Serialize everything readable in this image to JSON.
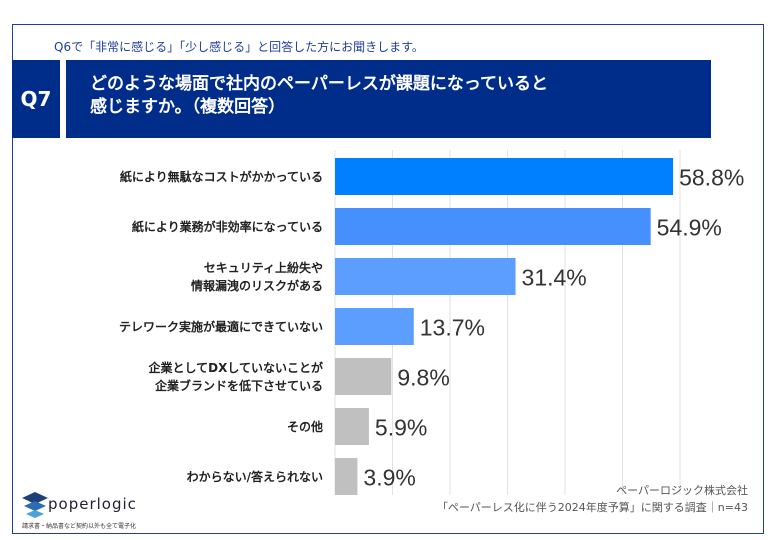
{
  "header": {
    "subtitle": "Q6で「非常に感じる」「少し感じる」と回答した方にお聞きします。",
    "q_number": "Q7",
    "question_line1": "どのような場面で社内のペーパーレスが課題になっていると",
    "question_line2": "感じますか。（複数回答）"
  },
  "chart_data": {
    "type": "bar",
    "orientation": "horizontal",
    "xlim": [
      0,
      60
    ],
    "grid": true,
    "categories": [
      "紙により無駄なコストがかかっている",
      "紙により業務が非効率になっている",
      "セキュリティ上紛失や\n情報漏洩のリスクがある",
      "テレワーク実施が最適にできていない",
      "企業としてDXしていないことが\n企業ブランドを低下させている",
      "その他",
      "わからない/答えられない"
    ],
    "values": [
      58.8,
      54.9,
      31.4,
      13.7,
      9.8,
      5.9,
      3.9
    ],
    "value_labels": [
      "58.8%",
      "54.9%",
      "31.4%",
      "13.7%",
      "9.8%",
      "5.9%",
      "3.9%"
    ],
    "colors": [
      "#0080ff",
      "#4590fd",
      "#5b9efd",
      "#5b9efd",
      "#c0c0c0",
      "#c0c0c0",
      "#c0c0c0"
    ]
  },
  "footer": {
    "company": "ペーパーロジック株式会社",
    "survey": "「ペーパーレス化に伴う2024年度予算」に関する調査｜n=43",
    "logo_text": "poperlogic",
    "tagline": "請求書・納品書など契約以外も全て電子化"
  }
}
